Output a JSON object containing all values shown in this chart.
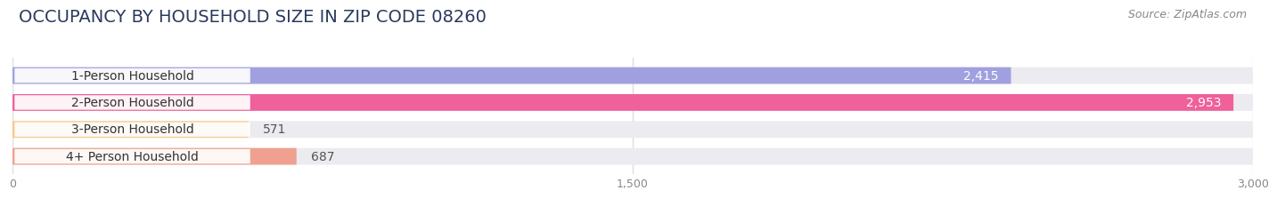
{
  "title": "OCCUPANCY BY HOUSEHOLD SIZE IN ZIP CODE 08260",
  "source": "Source: ZipAtlas.com",
  "categories": [
    "1-Person Household",
    "2-Person Household",
    "3-Person Household",
    "4+ Person Household"
  ],
  "values": [
    2415,
    2953,
    571,
    687
  ],
  "bar_colors": [
    "#a0a0e0",
    "#f0609a",
    "#f5c98a",
    "#f0a090"
  ],
  "xlim": [
    0,
    3000
  ],
  "xticks": [
    0,
    1500,
    3000
  ],
  "background_color": "#ffffff",
  "bar_bg_color": "#ebebf0",
  "label_bg_color": "#ffffff",
  "title_fontsize": 14,
  "source_fontsize": 9,
  "label_fontsize": 10,
  "value_fontsize": 10,
  "tick_fontsize": 9,
  "title_color": "#2a3a5c",
  "label_text_color": "#333333",
  "value_color_inside": "#ffffff",
  "value_color_outside": "#555555",
  "tick_color": "#888888",
  "source_color": "#888888",
  "grid_color": "#dddddd"
}
